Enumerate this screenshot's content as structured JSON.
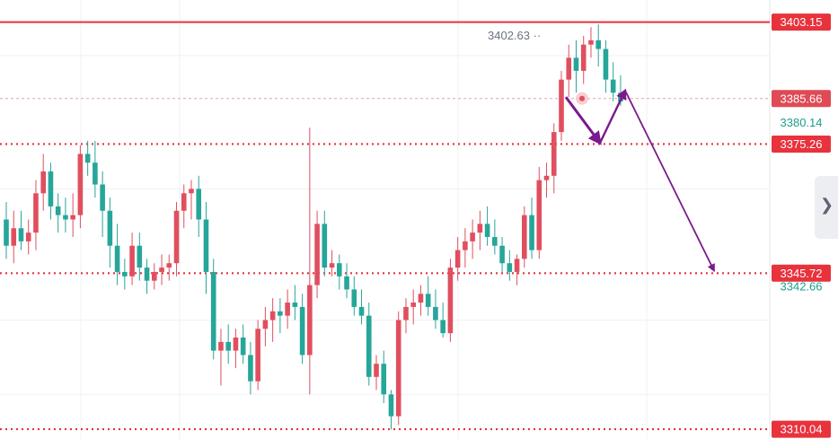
{
  "chart_data": {
    "type": "candlestick",
    "title": "",
    "xlabel": "",
    "ylabel": "",
    "ylim": [
      3308,
      3408
    ],
    "grid": true,
    "colors": {
      "up": "#e04f5f",
      "down": "#26a69a",
      "level": "#e8323c",
      "arrow": "#7a1a8c",
      "label_bg": "#e8323c"
    },
    "candles": [
      [
        3358,
        3362,
        3349,
        3352
      ],
      [
        3352,
        3360,
        3348,
        3356
      ],
      [
        3356,
        3360,
        3351,
        3353
      ],
      [
        3353,
        3358,
        3350,
        3355
      ],
      [
        3355,
        3367,
        3351,
        3364
      ],
      [
        3364,
        3373,
        3360,
        3369
      ],
      [
        3369,
        3371,
        3358,
        3361
      ],
      [
        3361,
        3364,
        3355,
        3359
      ],
      [
        3359,
        3363,
        3355,
        3358
      ],
      [
        3358,
        3364,
        3354,
        3359
      ],
      [
        3359,
        3375,
        3356,
        3373
      ],
      [
        3373,
        3376,
        3368,
        3371
      ],
      [
        3371,
        3376,
        3363,
        3366
      ],
      [
        3366,
        3369,
        3354,
        3360
      ],
      [
        3360,
        3363,
        3347,
        3352
      ],
      [
        3352,
        3357,
        3343,
        3346
      ],
      [
        3346,
        3349,
        3342,
        3345
      ],
      [
        3345,
        3355,
        3343,
        3352
      ],
      [
        3352,
        3355,
        3344,
        3347
      ],
      [
        3347,
        3349,
        3341,
        3344
      ],
      [
        3344,
        3348,
        3342,
        3346
      ],
      [
        3346,
        3350,
        3343,
        3347
      ],
      [
        3347,
        3350,
        3344,
        3348
      ],
      [
        3348,
        3362,
        3345,
        3360
      ],
      [
        3360,
        3366,
        3356,
        3364
      ],
      [
        3364,
        3367,
        3358,
        3365
      ],
      [
        3365,
        3368,
        3354,
        3358
      ],
      [
        3358,
        3362,
        3341,
        3346
      ],
      [
        3346,
        3349,
        3326,
        3328
      ],
      [
        3328,
        3333,
        3320,
        3330
      ],
      [
        3330,
        3334,
        3325,
        3328
      ],
      [
        3328,
        3333,
        3324,
        3331
      ],
      [
        3331,
        3334,
        3325,
        3327
      ],
      [
        3327,
        3330,
        3318,
        3321
      ],
      [
        3321,
        3335,
        3319,
        3333
      ],
      [
        3333,
        3338,
        3329,
        3335
      ],
      [
        3335,
        3340,
        3330,
        3337
      ],
      [
        3337,
        3340,
        3332,
        3336
      ],
      [
        3336,
        3342,
        3333,
        3339
      ],
      [
        3339,
        3343,
        3335,
        3338
      ],
      [
        3338,
        3341,
        3325,
        3327
      ],
      [
        3327,
        3379,
        3318,
        3343
      ],
      [
        3343,
        3360,
        3340,
        3357
      ],
      [
        3357,
        3360,
        3345,
        3347
      ],
      [
        3347,
        3351,
        3345,
        3348
      ],
      [
        3348,
        3350,
        3342,
        3345
      ],
      [
        3345,
        3348,
        3340,
        3342
      ],
      [
        3342,
        3345,
        3336,
        3338
      ],
      [
        3338,
        3342,
        3334,
        3336
      ],
      [
        3336,
        3339,
        3320,
        3322
      ],
      [
        3322,
        3327,
        3319,
        3325
      ],
      [
        3325,
        3328,
        3316,
        3318
      ],
      [
        3318,
        3319,
        3310,
        3313
      ],
      [
        3313,
        3337,
        3311,
        3335
      ],
      [
        3335,
        3340,
        3332,
        3338
      ],
      [
        3338,
        3342,
        3334,
        3339
      ],
      [
        3339,
        3343,
        3336,
        3341
      ],
      [
        3341,
        3345,
        3336,
        3338
      ],
      [
        3338,
        3342,
        3333,
        3335
      ],
      [
        3335,
        3339,
        3331,
        3332
      ],
      [
        3332,
        3349,
        3330,
        3347
      ],
      [
        3347,
        3354,
        3344,
        3351
      ],
      [
        3351,
        3356,
        3347,
        3353
      ],
      [
        3353,
        3358,
        3349,
        3355
      ],
      [
        3355,
        3360,
        3351,
        3357
      ],
      [
        3357,
        3361,
        3352,
        3354
      ],
      [
        3354,
        3358,
        3350,
        3352
      ],
      [
        3352,
        3354,
        3346,
        3348
      ],
      [
        3348,
        3351,
        3344,
        3346
      ],
      [
        3346,
        3350,
        3343,
        3349
      ],
      [
        3349,
        3361,
        3347,
        3359
      ],
      [
        3359,
        3363,
        3349,
        3351
      ],
      [
        3351,
        3370,
        3349,
        3367
      ],
      [
        3367,
        3371,
        3363,
        3368
      ],
      [
        3368,
        3380,
        3364,
        3378
      ],
      [
        3378,
        3392,
        3376,
        3390
      ],
      [
        3390,
        3398,
        3386,
        3395
      ],
      [
        3395,
        3399,
        3387,
        3392
      ],
      [
        3392,
        3400,
        3389,
        3398
      ],
      [
        3398,
        3402,
        3395,
        3399
      ],
      [
        3399,
        3402.63,
        3393,
        3397
      ],
      [
        3397,
        3399,
        3387,
        3390
      ],
      [
        3390,
        3394,
        3385,
        3387
      ],
      [
        3387,
        3391,
        3384,
        3385
      ]
    ],
    "horizontal_levels": [
      {
        "value": 3403.15,
        "label": "3403.15",
        "style": "solid"
      },
      {
        "value": 3375.26,
        "label": "3375.26",
        "style": "dotted"
      },
      {
        "value": 3345.72,
        "label": "3345.72",
        "style": "dotted"
      },
      {
        "value": 3310.04,
        "label": "3310.04",
        "style": "dotted"
      }
    ],
    "current_price": {
      "value": 3385.66,
      "label": "3385.66"
    },
    "axis_values": [
      {
        "value": 3380.14,
        "label": "3380.14"
      },
      {
        "value": 3342.66,
        "label": "3342.66"
      }
    ],
    "high_marker": {
      "value": 3402.63,
      "label": "3402.63"
    },
    "projection_path": [
      {
        "candle": 83,
        "value": 3386
      },
      {
        "candle": 88,
        "value": 3376
      },
      {
        "candle": 92,
        "value": 3387.5
      },
      {
        "candle": 106,
        "value": 3346.5
      }
    ]
  }
}
